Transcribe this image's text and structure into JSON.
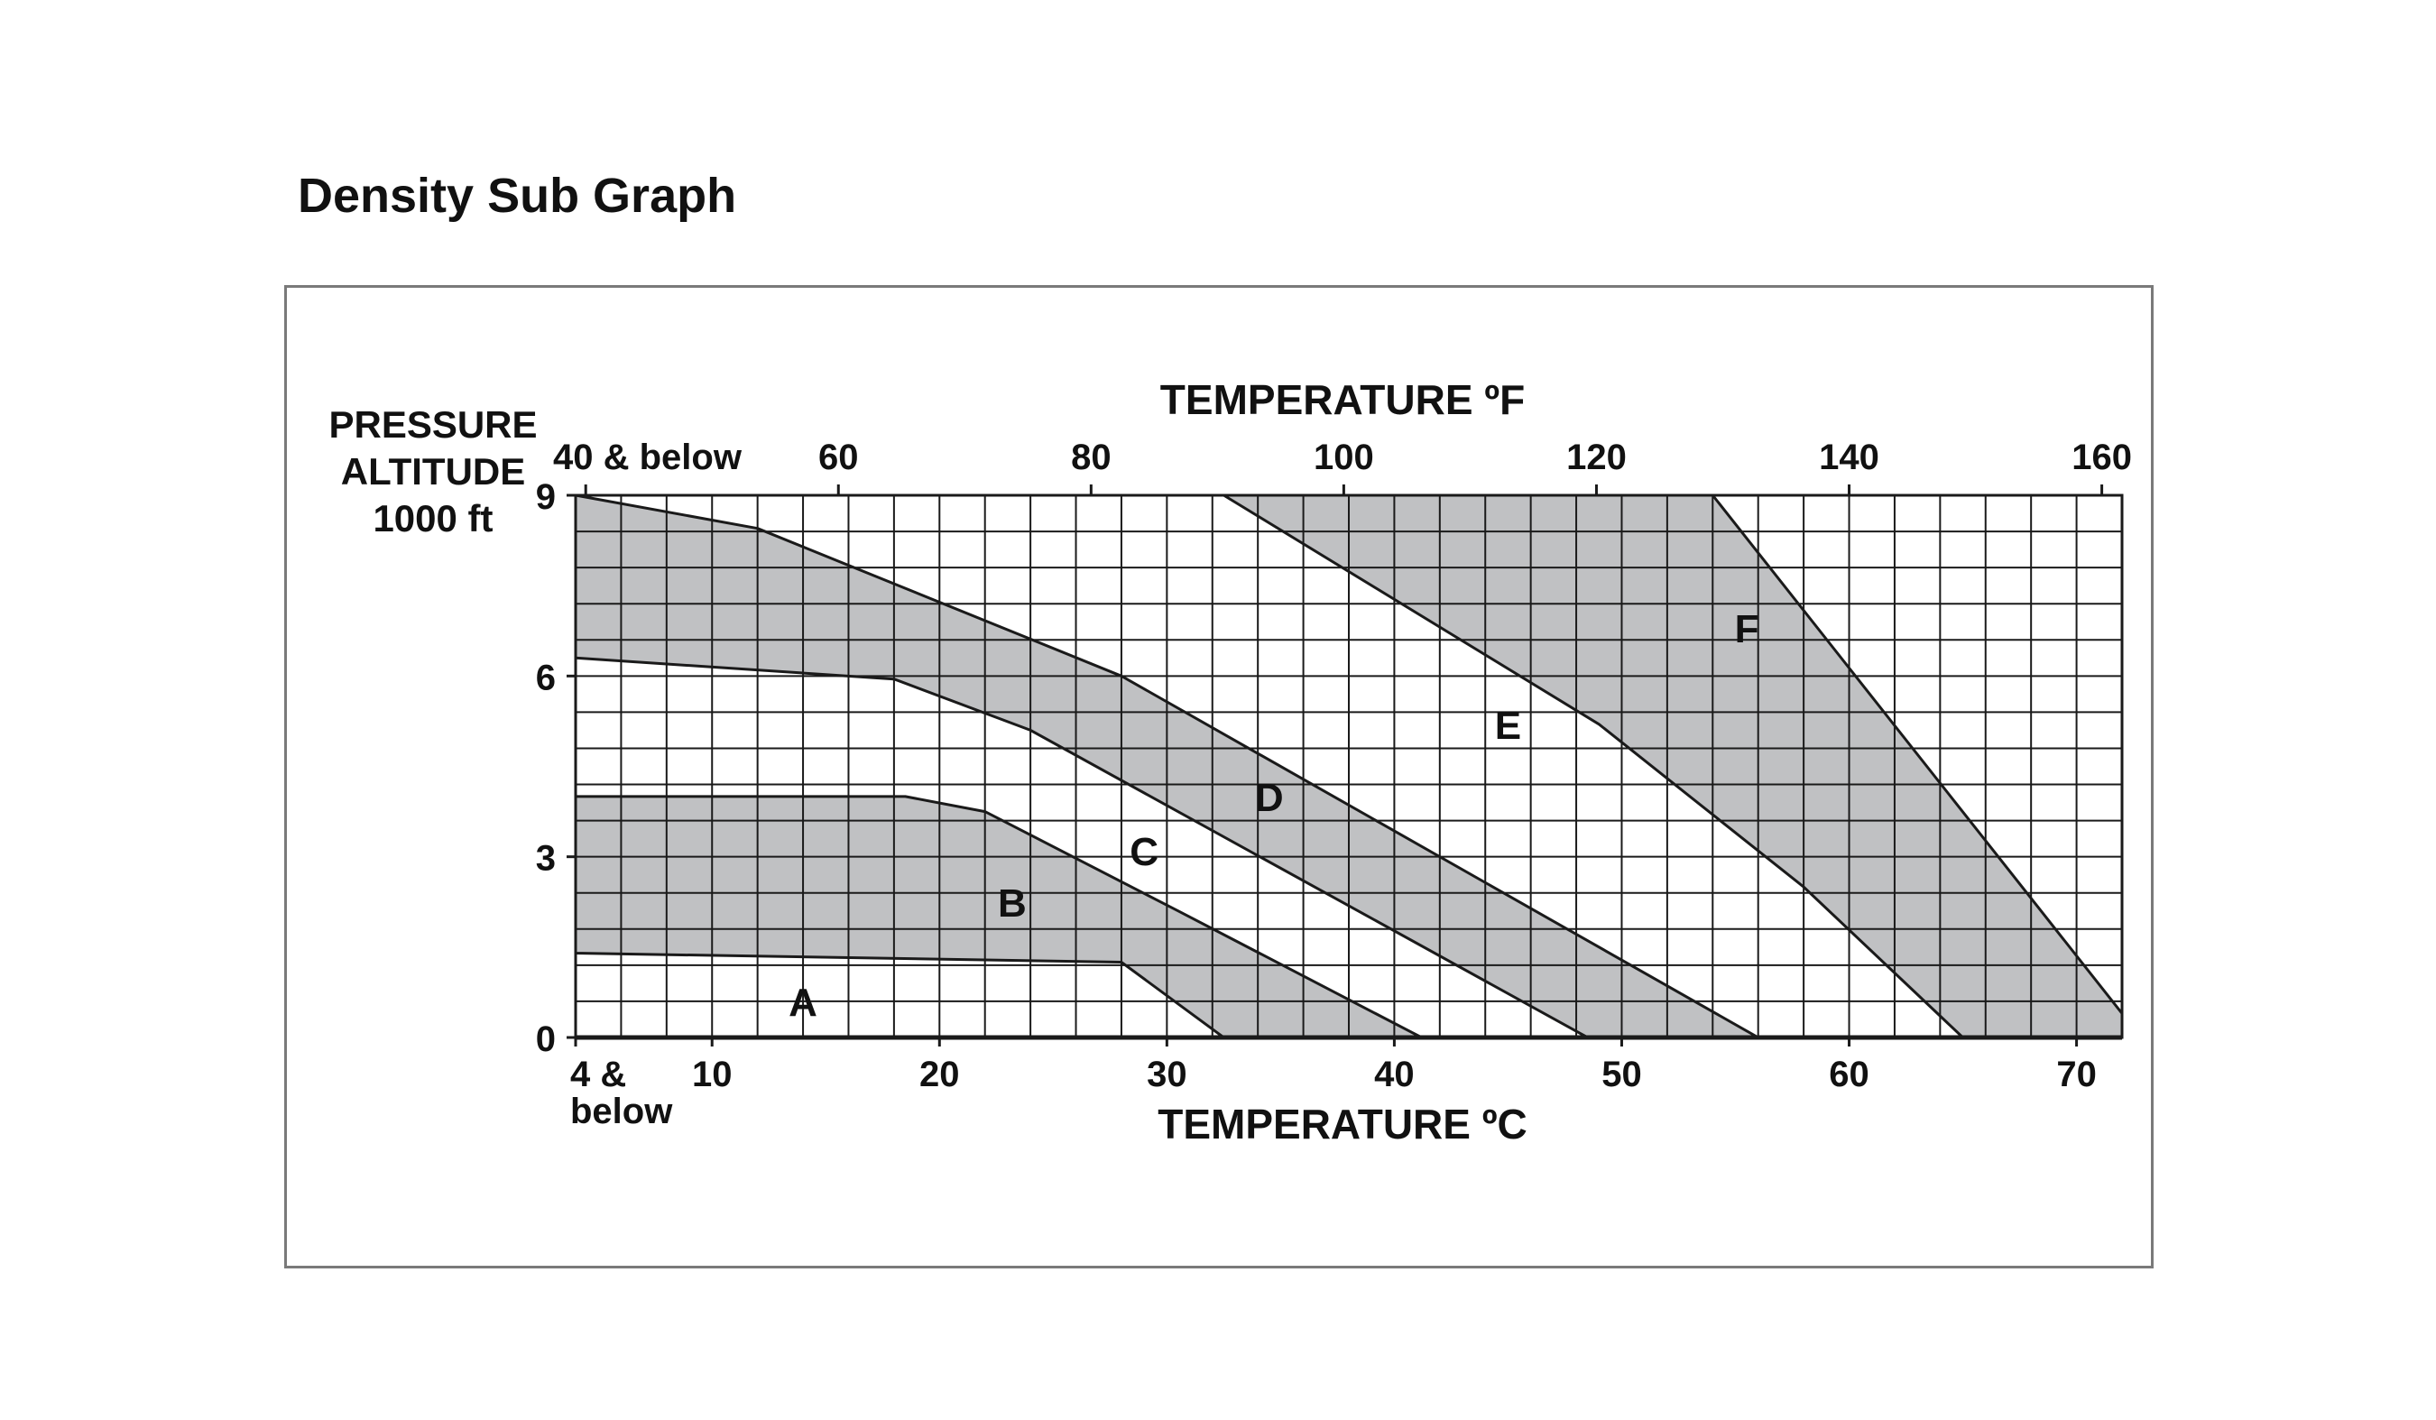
{
  "page": {
    "title": "Density Sub Graph"
  },
  "chart_data": {
    "type": "area",
    "title": "",
    "top_axis": {
      "label": "TEMPERATURE  ºF",
      "ticks": [
        {
          "value": 40,
          "label": "40 & below"
        },
        {
          "value": 60,
          "label": "60"
        },
        {
          "value": 80,
          "label": "80"
        },
        {
          "value": 100,
          "label": "100"
        },
        {
          "value": 120,
          "label": "120"
        },
        {
          "value": 140,
          "label": "140"
        },
        {
          "value": 160,
          "label": "160"
        }
      ]
    },
    "x_axis": {
      "label": "TEMPERATURE  ºC",
      "unit": "°C",
      "xlim": [
        4,
        72
      ],
      "ticks": [
        {
          "value": 4,
          "label": "4 &",
          "label2": "below"
        },
        {
          "value": 10,
          "label": "10"
        },
        {
          "value": 20,
          "label": "20"
        },
        {
          "value": 30,
          "label": "30"
        },
        {
          "value": 40,
          "label": "40"
        },
        {
          "value": 50,
          "label": "50"
        },
        {
          "value": 60,
          "label": "60"
        },
        {
          "value": 70,
          "label": "70"
        }
      ]
    },
    "y_axis": {
      "label_lines": [
        "PRESSURE",
        "ALTITUDE",
        "1000 ft"
      ],
      "ylim": [
        0,
        9
      ],
      "ticks": [
        0,
        3,
        6,
        9
      ]
    },
    "grid": true,
    "zones": [
      {
        "name": "A",
        "shaded": false,
        "label_pos": [
          14,
          0.6
        ]
      },
      {
        "name": "B",
        "shaded": true,
        "label_pos": [
          23.2,
          2.25
        ],
        "polygon": [
          [
            4,
            1.4
          ],
          [
            28,
            1.25
          ],
          [
            32.5,
            0
          ],
          [
            41.2,
            0
          ],
          [
            30.5,
            2.1
          ],
          [
            22,
            3.75
          ],
          [
            18.5,
            4.0
          ],
          [
            4,
            4.0
          ]
        ]
      },
      {
        "name": "C",
        "shaded": false,
        "label_pos": [
          29,
          3.1
        ]
      },
      {
        "name": "D",
        "shaded": true,
        "label_pos": [
          34.5,
          4.0
        ],
        "polygon": [
          [
            4,
            6.3
          ],
          [
            18,
            5.95
          ],
          [
            24,
            5.1
          ],
          [
            48.5,
            0
          ],
          [
            56,
            0
          ],
          [
            28,
            6.0
          ],
          [
            12,
            8.45
          ],
          [
            4,
            9.0
          ]
        ]
      },
      {
        "name": "E",
        "shaded": false,
        "label_pos": [
          45,
          5.2
        ]
      },
      {
        "name": "F",
        "shaded": true,
        "label_pos": [
          55.5,
          6.8
        ],
        "polygon": [
          [
            32.5,
            9.0
          ],
          [
            54,
            9.0
          ],
          [
            72,
            0.4
          ],
          [
            72,
            0
          ],
          [
            65,
            0
          ],
          [
            58,
            2.5
          ],
          [
            49,
            5.2
          ]
        ]
      }
    ],
    "legend": "none"
  },
  "colors": {
    "zone_fill": "#c0c1c3",
    "grid": "#1a1a1a",
    "frame": "#7a7a7a",
    "text": "#111111"
  }
}
